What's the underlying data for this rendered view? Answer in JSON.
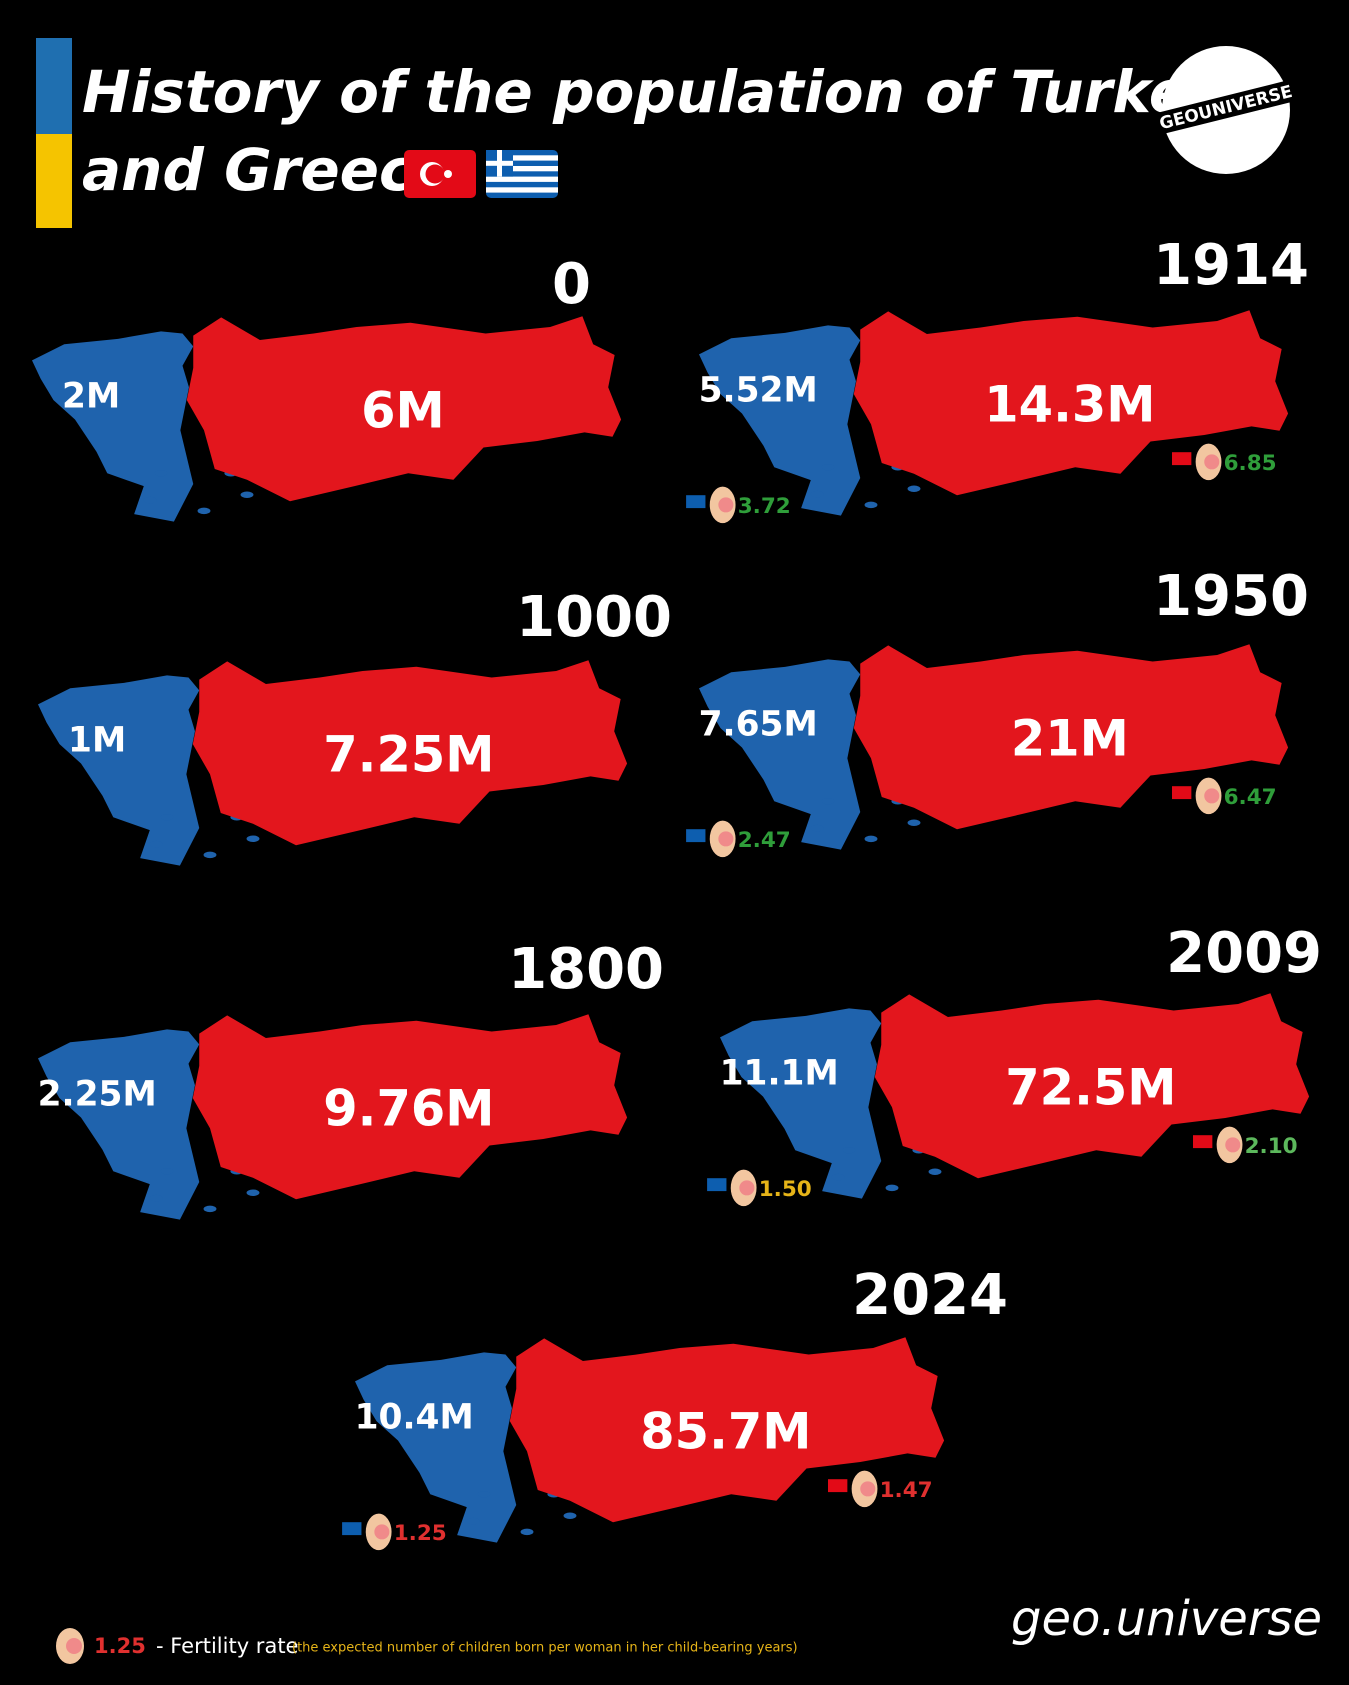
{
  "header": {
    "title_lines": [
      "History of the population of Turkey",
      "and Greece"
    ],
    "logo": "GEOUNIVERSE"
  },
  "panels": [
    {
      "year": "0",
      "greece": "2M",
      "turkey": "6M"
    },
    {
      "year": "1914",
      "greece": "5.52M",
      "turkey": "14.3M",
      "fertility": {
        "greece": {
          "value": "3.72",
          "color": "#2f9e3a"
        },
        "turkey": {
          "value": "6.85",
          "color": "#2f9e3a"
        }
      }
    },
    {
      "year": "1000",
      "greece": "1M",
      "turkey": "7.25M"
    },
    {
      "year": "1950",
      "greece": "7.65M",
      "turkey": "21M",
      "fertility": {
        "greece": {
          "value": "2.47",
          "color": "#2f9e3a"
        },
        "turkey": {
          "value": "6.47",
          "color": "#2f9e3a"
        }
      }
    },
    {
      "year": "1800",
      "greece": "2.25M",
      "turkey": "9.76M"
    },
    {
      "year": "2009",
      "greece": "11.1M",
      "turkey": "72.5M",
      "fertility": {
        "greece": {
          "value": "1.50",
          "color": "#e6b418"
        },
        "turkey": {
          "value": "2.10",
          "color": "#5cb85c"
        }
      }
    },
    {
      "year": "2024",
      "greece": "10.4M",
      "turkey": "85.7M",
      "fertility": {
        "greece": {
          "value": "1.25",
          "color": "#e0302f"
        },
        "turkey": {
          "value": "1.47",
          "color": "#e0302f"
        }
      }
    }
  ],
  "legend": {
    "value": "1.25",
    "color": "#e0302f",
    "label": "- Fertility rate",
    "note": "(the expected number of children born per woman in her child-bearing years)"
  },
  "footer": "geo.universe"
}
